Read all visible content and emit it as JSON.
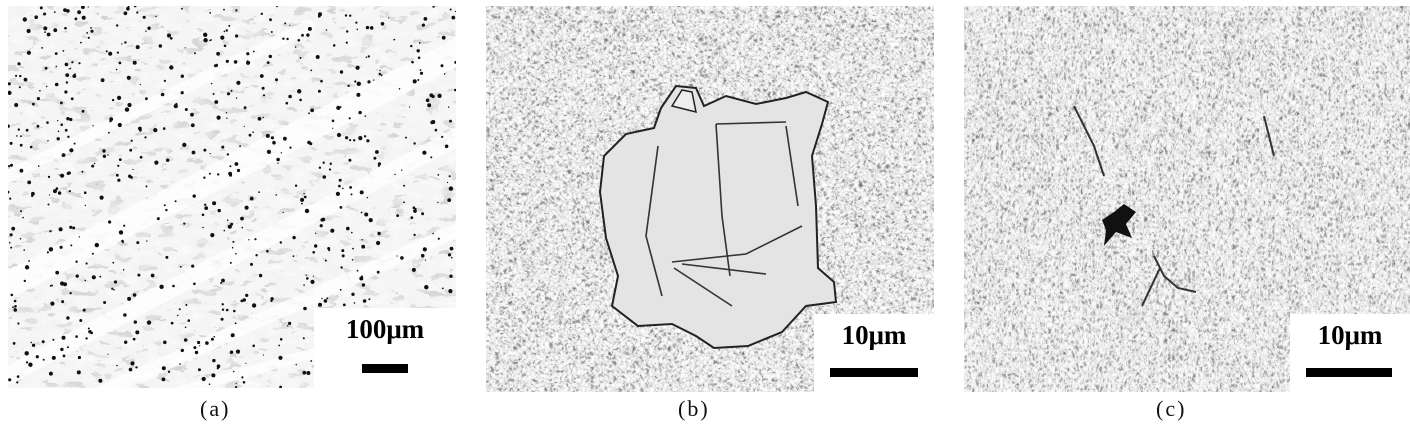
{
  "panels": [
    {
      "caption": "(a)",
      "scale_label": "100μm"
    },
    {
      "caption": "(b)",
      "scale_label": "10μm"
    },
    {
      "caption": "(c)",
      "scale_label": "10μm"
    }
  ]
}
